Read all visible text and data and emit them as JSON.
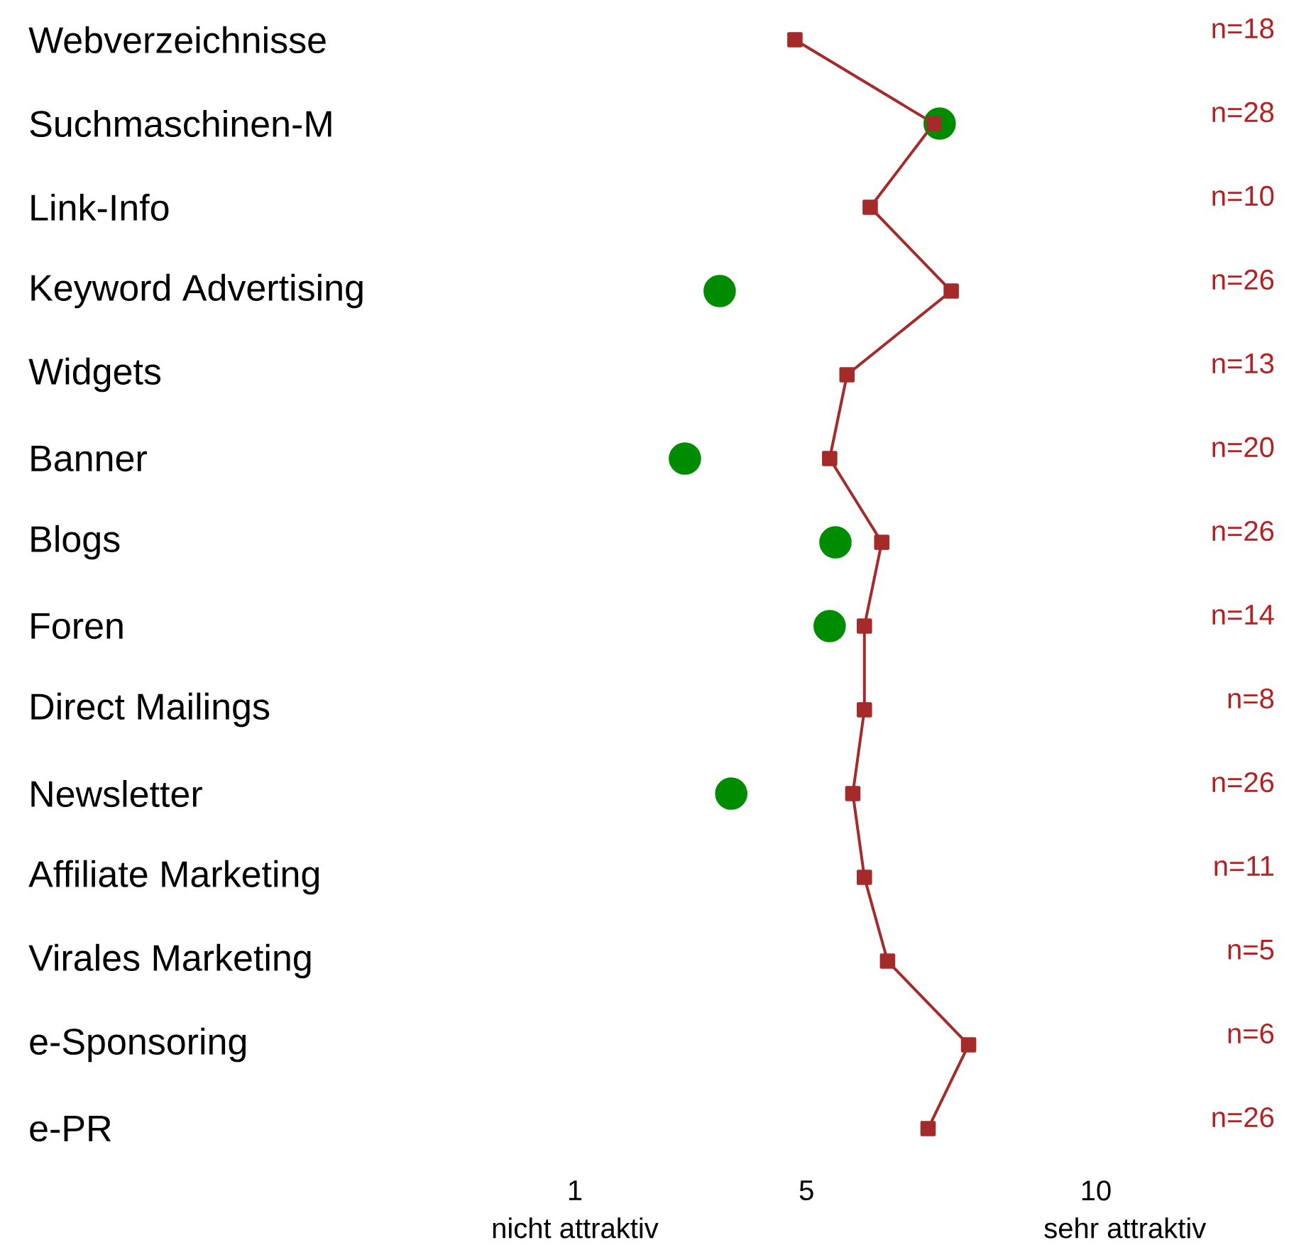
{
  "chart_data": {
    "type": "line",
    "orientation": "horizontal",
    "categories": [
      "Webverzeichnisse",
      "Suchmaschinen-M",
      "Link-Info",
      "Keyword Advertising",
      "Widgets",
      "Banner",
      "Blogs",
      "Foren",
      "Direct Mailings",
      "Newsletter",
      "Affiliate Marketing",
      "Virales Marketing",
      "e-Sponsoring",
      "e-PR"
    ],
    "series": [
      {
        "color": "#a52a2a",
        "marker": "square",
        "values": [
          4.8,
          7.2,
          6.1,
          7.5,
          5.7,
          5.4,
          6.3,
          6.0,
          6.0,
          5.8,
          6.0,
          6.4,
          7.8,
          7.1
        ]
      },
      {
        "type": "scatter",
        "color": "#008c00",
        "marker": "circle",
        "values": [
          null,
          7.3,
          null,
          3.5,
          null,
          2.9,
          5.5,
          5.4,
          null,
          3.7,
          null,
          null,
          null,
          null
        ]
      }
    ],
    "xlim": [
      1,
      10
    ],
    "xticks": [
      1,
      5,
      10
    ],
    "annotations": [
      "n=18",
      "n=28",
      "n=10",
      "n=26",
      "n=13",
      "n=20",
      "n=26",
      "n=14",
      "n=8",
      "n=26",
      "n=11",
      "n=5",
      "n=6",
      "n=26",
      "nicht attraktiv",
      "sehr attraktiv"
    ]
  }
}
